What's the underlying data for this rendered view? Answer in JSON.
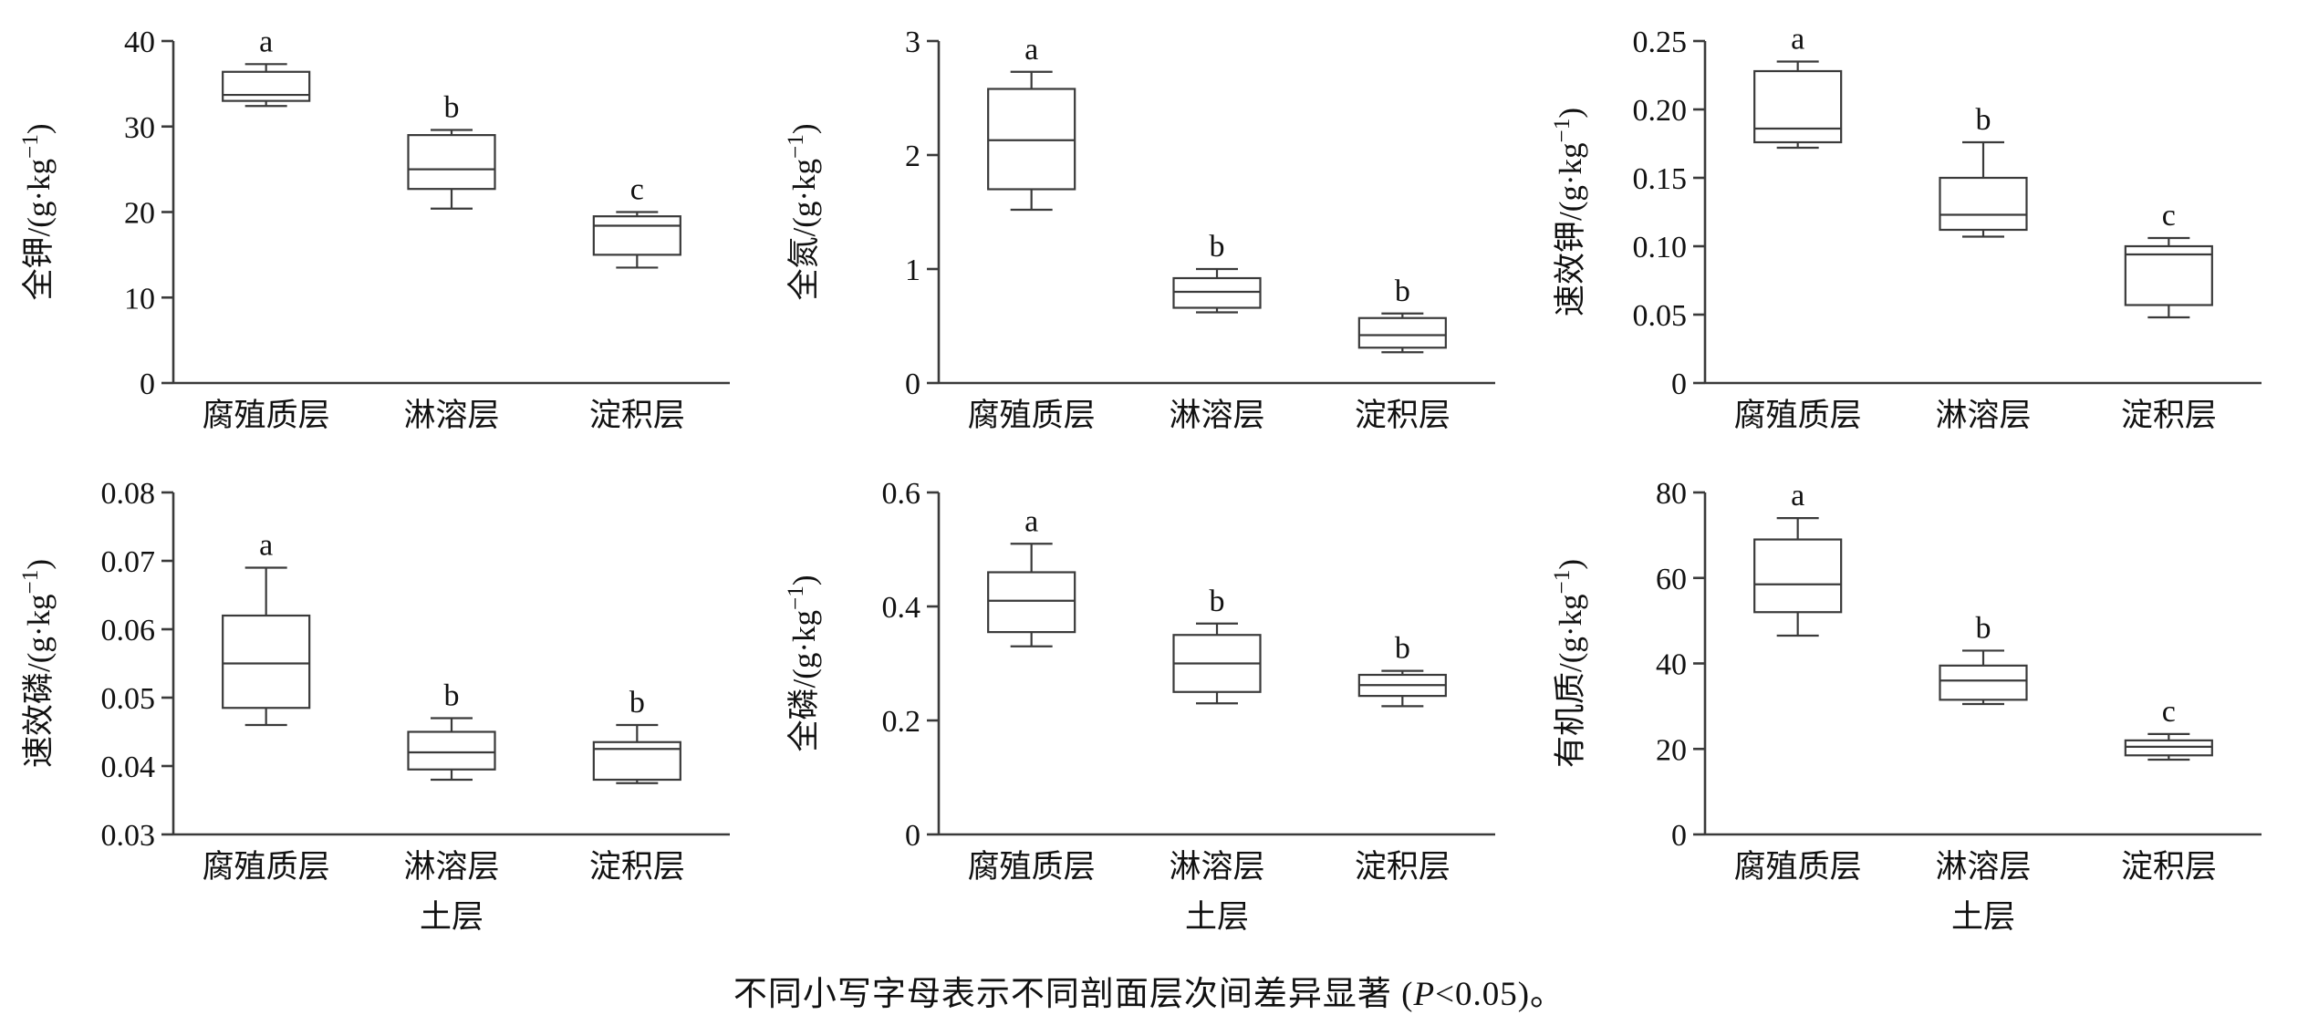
{
  "page": {
    "background": "#ffffff",
    "line_color": "#3a3a3a",
    "text_color": "#111111"
  },
  "caption": {
    "pre": "不同小写字母表示不同剖面层次间差异显著 (",
    "italic": "P",
    "post": "<0.05)。"
  },
  "chart_data": [
    {
      "type": "box",
      "ylabel": "全钾/(g·kg⁻¹)",
      "xlabel": "",
      "categories": [
        "腐殖质层",
        "淋溶层",
        "淀积层"
      ],
      "ylim": [
        0,
        40
      ],
      "yticks": [
        0,
        10,
        20,
        30,
        40
      ],
      "ytick_labels": [
        "0",
        "10",
        "20",
        "30",
        "40"
      ],
      "boxes": [
        {
          "letter": "a",
          "whisker_low": 32.4,
          "q1": 33.0,
          "median": 33.7,
          "q3": 36.4,
          "whisker_high": 37.3
        },
        {
          "letter": "b",
          "whisker_low": 20.4,
          "q1": 22.7,
          "median": 25.0,
          "q3": 29.0,
          "whisker_high": 29.6
        },
        {
          "letter": "c",
          "whisker_low": 13.5,
          "q1": 15.0,
          "median": 18.4,
          "q3": 19.5,
          "whisker_high": 20.0
        }
      ]
    },
    {
      "type": "box",
      "ylabel": "全氮/(g·kg⁻¹)",
      "xlabel": "",
      "categories": [
        "腐殖质层",
        "淋溶层",
        "淀积层"
      ],
      "ylim": [
        0,
        3
      ],
      "yticks": [
        0,
        1,
        2,
        3
      ],
      "ytick_labels": [
        "0",
        "1",
        "2",
        "3"
      ],
      "boxes": [
        {
          "letter": "a",
          "whisker_low": 1.52,
          "q1": 1.7,
          "median": 2.13,
          "q3": 2.58,
          "whisker_high": 2.73
        },
        {
          "letter": "b",
          "whisker_low": 0.62,
          "q1": 0.66,
          "median": 0.8,
          "q3": 0.92,
          "whisker_high": 1.0
        },
        {
          "letter": "b",
          "whisker_low": 0.27,
          "q1": 0.31,
          "median": 0.42,
          "q3": 0.57,
          "whisker_high": 0.61
        }
      ]
    },
    {
      "type": "box",
      "ylabel": "速效钾/(g·kg⁻¹)",
      "xlabel": "",
      "categories": [
        "腐殖质层",
        "淋溶层",
        "淀积层"
      ],
      "ylim": [
        0,
        0.25
      ],
      "yticks": [
        0,
        0.05,
        0.1,
        0.15,
        0.2,
        0.25
      ],
      "ytick_labels": [
        "0",
        "0.05",
        "0.10",
        "0.15",
        "0.20",
        "0.25"
      ],
      "boxes": [
        {
          "letter": "a",
          "whisker_low": 0.172,
          "q1": 0.176,
          "median": 0.186,
          "q3": 0.228,
          "whisker_high": 0.235
        },
        {
          "letter": "b",
          "whisker_low": 0.107,
          "q1": 0.112,
          "median": 0.123,
          "q3": 0.15,
          "whisker_high": 0.176
        },
        {
          "letter": "c",
          "whisker_low": 0.048,
          "q1": 0.057,
          "median": 0.094,
          "q3": 0.1,
          "whisker_high": 0.106
        }
      ]
    },
    {
      "type": "box",
      "ylabel": "速效磷/(g·kg⁻¹)",
      "xlabel": "土层",
      "categories": [
        "腐殖质层",
        "淋溶层",
        "淀积层"
      ],
      "ylim": [
        0.03,
        0.08
      ],
      "yticks": [
        0.03,
        0.04,
        0.05,
        0.06,
        0.07,
        0.08
      ],
      "ytick_labels": [
        "0.03",
        "0.04",
        "0.05",
        "0.06",
        "0.07",
        "0.08"
      ],
      "boxes": [
        {
          "letter": "a",
          "whisker_low": 0.046,
          "q1": 0.0485,
          "median": 0.055,
          "q3": 0.062,
          "whisker_high": 0.069
        },
        {
          "letter": "b",
          "whisker_low": 0.038,
          "q1": 0.0395,
          "median": 0.042,
          "q3": 0.045,
          "whisker_high": 0.047
        },
        {
          "letter": "b",
          "whisker_low": 0.0375,
          "q1": 0.038,
          "median": 0.0425,
          "q3": 0.0435,
          "whisker_high": 0.046
        }
      ]
    },
    {
      "type": "box",
      "ylabel": "全磷/(g·kg⁻¹)",
      "xlabel": "土层",
      "categories": [
        "腐殖质层",
        "淋溶层",
        "淀积层"
      ],
      "ylim": [
        0,
        0.6
      ],
      "yticks": [
        0,
        0.2,
        0.4,
        0.6
      ],
      "ytick_labels": [
        "0",
        "0.2",
        "0.4",
        "0.6"
      ],
      "boxes": [
        {
          "letter": "a",
          "whisker_low": 0.33,
          "q1": 0.355,
          "median": 0.41,
          "q3": 0.46,
          "whisker_high": 0.51
        },
        {
          "letter": "b",
          "whisker_low": 0.23,
          "q1": 0.25,
          "median": 0.3,
          "q3": 0.35,
          "whisker_high": 0.37
        },
        {
          "letter": "b",
          "whisker_low": 0.225,
          "q1": 0.243,
          "median": 0.262,
          "q3": 0.28,
          "whisker_high": 0.287
        }
      ]
    },
    {
      "type": "box",
      "ylabel": "有机质/(g·kg⁻¹)",
      "xlabel": "土层",
      "categories": [
        "腐殖质层",
        "淋溶层",
        "淀积层"
      ],
      "ylim": [
        0,
        80
      ],
      "yticks": [
        0,
        20,
        40,
        60,
        80
      ],
      "ytick_labels": [
        "0",
        "20",
        "40",
        "60",
        "80"
      ],
      "boxes": [
        {
          "letter": "a",
          "whisker_low": 46.5,
          "q1": 52.0,
          "median": 58.5,
          "q3": 69.0,
          "whisker_high": 74.0
        },
        {
          "letter": "b",
          "whisker_low": 30.5,
          "q1": 31.5,
          "median": 36.0,
          "q3": 39.5,
          "whisker_high": 43.0
        },
        {
          "letter": "c",
          "whisker_low": 17.5,
          "q1": 18.5,
          "median": 20.5,
          "q3": 22.0,
          "whisker_high": 23.5
        }
      ]
    }
  ]
}
